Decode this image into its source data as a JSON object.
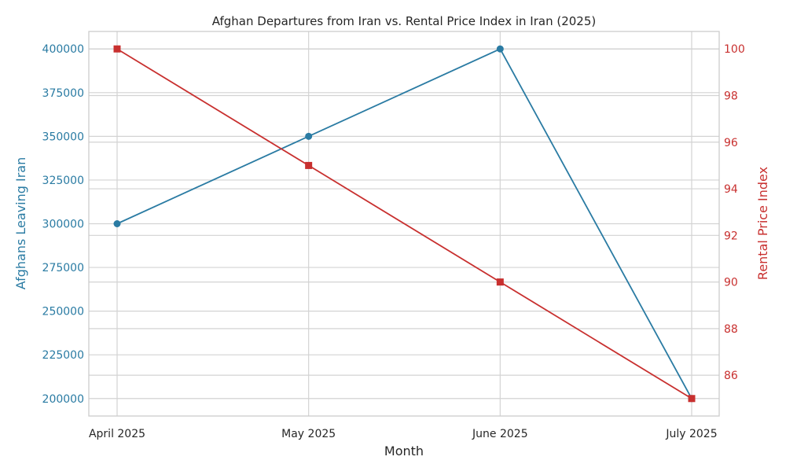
{
  "chart_data": {
    "type": "line",
    "title": "Afghan Departures from Iran vs. Rental Price Index in Iran (2025)",
    "xlabel": "Month",
    "categories": [
      "April 2025",
      "May 2025",
      "June 2025",
      "July 2025"
    ],
    "y_left": {
      "label": "Afghans Leaving Iran",
      "ticks": [
        200000,
        225000,
        250000,
        275000,
        300000,
        325000,
        350000,
        375000,
        400000
      ],
      "range": [
        190000,
        410000
      ]
    },
    "y_right": {
      "label": "Rental Price Index",
      "ticks": [
        86,
        88,
        90,
        92,
        94,
        96,
        98,
        100
      ],
      "range": [
        84.25,
        100.75
      ]
    },
    "series": [
      {
        "name": "",
        "axis": "left",
        "values": [
          300000,
          350000,
          400000,
          200000
        ],
        "color": "#2a7ba3",
        "marker": "circle"
      },
      {
        "name": "",
        "axis": "right",
        "values": [
          100,
          95,
          90,
          85
        ],
        "color": "#c8302f",
        "marker": "square"
      }
    ],
    "grid": true,
    "colors": {
      "left_axis": "#2a7ba3",
      "right_axis": "#c8302f",
      "grid": "#d3d3d3",
      "frame": "#cccccc",
      "text": "#262626"
    }
  }
}
